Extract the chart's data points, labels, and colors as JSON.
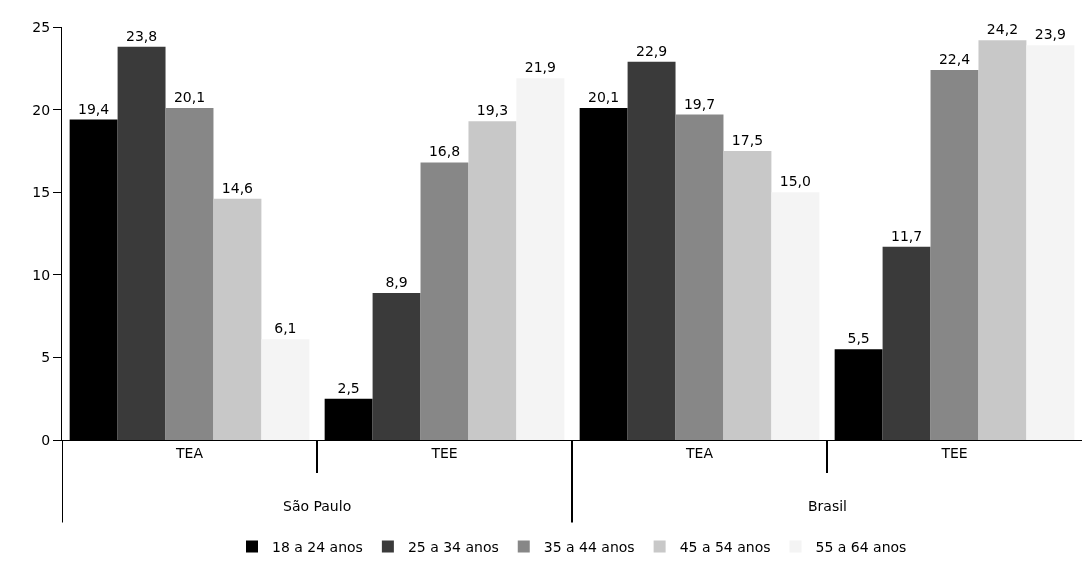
{
  "chart_data": {
    "type": "bar",
    "categories": [
      "TEA",
      "TEE",
      "TEA",
      "TEE"
    ],
    "annotations": [
      "São Paulo",
      "Brasil"
    ],
    "series": [
      {
        "name": "18 a 24 anos",
        "color": "#000000",
        "values": [
          19.4,
          2.5,
          20.1,
          5.5
        ],
        "value_labels": [
          "19,4",
          "2,5",
          "20,1",
          "5,5"
        ]
      },
      {
        "name": "25 a 34 anos",
        "color": "#3a3a3a",
        "values": [
          23.8,
          8.9,
          22.9,
          11.7
        ],
        "value_labels": [
          "23,8",
          "8,9",
          "22,9",
          "11,7"
        ]
      },
      {
        "name": "35 a 44 anos",
        "color": "#878787",
        "values": [
          20.1,
          16.8,
          19.7,
          22.4
        ],
        "value_labels": [
          "20,1",
          "16,8",
          "19,7",
          "22,4"
        ]
      },
      {
        "name": "45 a 54 anos",
        "color": "#c8c8c8",
        "values": [
          14.6,
          19.3,
          17.5,
          24.2
        ],
        "value_labels": [
          "14,6",
          "19,3",
          "17,5",
          "24,2"
        ]
      },
      {
        "name": "55 a 64 anos",
        "color": "#f4f4f4",
        "values": [
          6.1,
          21.9,
          15.0,
          23.9
        ],
        "value_labels": [
          "6,1",
          "21,9",
          "15,0",
          "23,9"
        ]
      }
    ],
    "ylim": [
      0,
      25
    ],
    "yticks": [
      0,
      5,
      10,
      15,
      20,
      25
    ],
    "grid": false,
    "legend": "bottom"
  }
}
